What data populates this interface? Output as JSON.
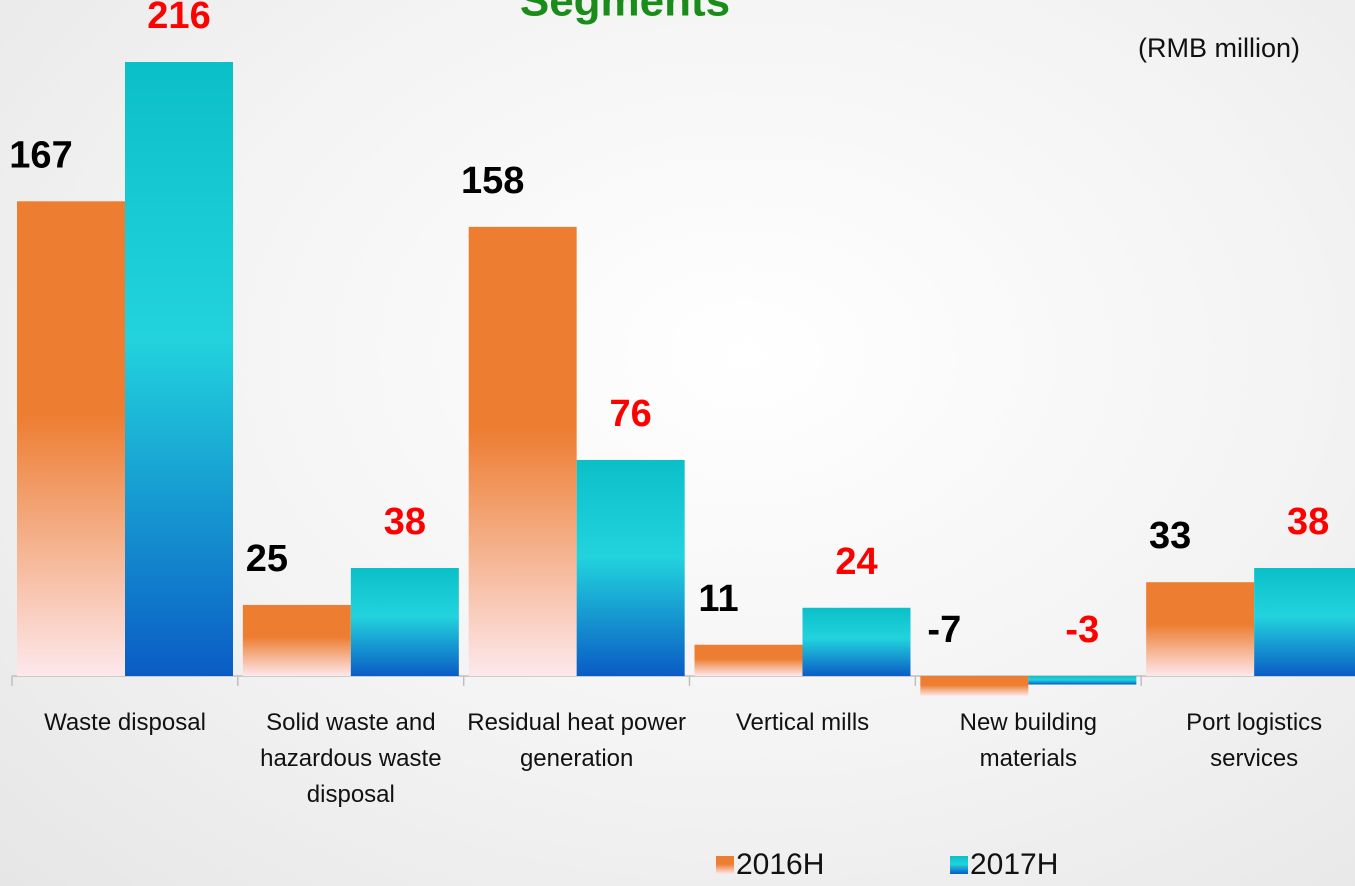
{
  "chart_data": {
    "type": "bar",
    "title": "Segments",
    "unit_label": "(RMB million)",
    "categories": [
      "Waste disposal",
      "Solid waste and hazardous waste disposal",
      "Residual heat power generation",
      "Vertical mills",
      "New building materials",
      "Port logistics services"
    ],
    "series": [
      {
        "name": "2016H",
        "color": "#ed7d31",
        "label_color": "#000000",
        "values": [
          167,
          25,
          158,
          11,
          -7,
          33
        ]
      },
      {
        "name": "2017H",
        "color": "#0bbfc8",
        "label_color": "#ff0000",
        "values": [
          216,
          38,
          76,
          24,
          -3,
          38
        ]
      }
    ],
    "ylim": [
      -10,
      216
    ]
  }
}
